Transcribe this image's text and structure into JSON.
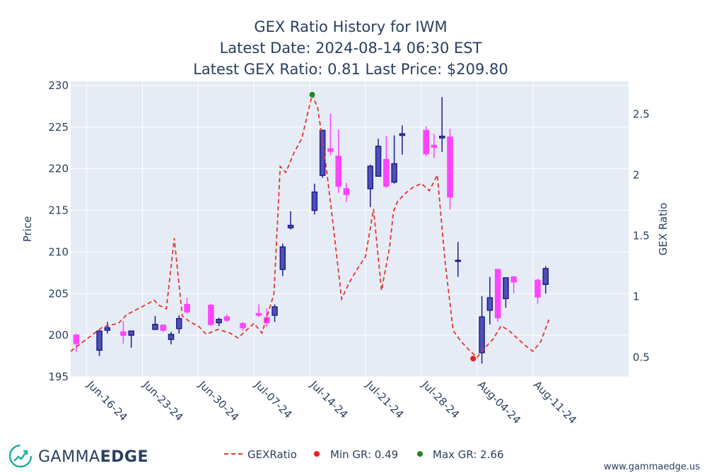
{
  "chart_data": {
    "type": "candlestick+line",
    "title": [
      "GEX Ratio History for IWM",
      "Latest Date: 2024-08-14 06:30 EST",
      "Latest GEX Ratio: 0.81 Last Price: $209.80"
    ],
    "y_left_label": "Price",
    "y_right_label": "GEX Ratio",
    "y_left_range": [
      195,
      230.5
    ],
    "y_right_range": [
      0.34,
      2.77
    ],
    "y_left_ticks": [
      195,
      200,
      205,
      210,
      215,
      220,
      225,
      230
    ],
    "y_right_ticks": [
      0.5,
      1,
      1.5,
      2,
      2.5
    ],
    "x_range_days": [
      0,
      70
    ],
    "x_ticks": [
      {
        "day": 2,
        "label": "Jun-16-24"
      },
      {
        "day": 9,
        "label": "Jun-23-24"
      },
      {
        "day": 16,
        "label": "Jun-30-24"
      },
      {
        "day": 23,
        "label": "Jul-07-24"
      },
      {
        "day": 30,
        "label": "Jul-14-24"
      },
      {
        "day": 37,
        "label": "Jul-21-24"
      },
      {
        "day": 44,
        "label": "Jul-28-24"
      },
      {
        "day": 51,
        "label": "Aug-04-24"
      },
      {
        "day": 58,
        "label": "Aug-11-24"
      }
    ],
    "increasing_color": "#5050b8",
    "decreasing_color": "#ff44ff",
    "candles": [
      {
        "day": 0.7,
        "o": 200.0,
        "h": 200.2,
        "l": 198.0,
        "c": 199.0
      },
      {
        "day": 3.6,
        "o": 198.2,
        "h": 200.6,
        "l": 197.5,
        "c": 200.5
      },
      {
        "day": 4.6,
        "o": 200.6,
        "h": 201.6,
        "l": 200.2,
        "c": 200.9
      },
      {
        "day": 6.6,
        "o": 200.4,
        "h": 201.7,
        "l": 199.0,
        "c": 200.0
      },
      {
        "day": 7.6,
        "o": 200.0,
        "h": 200.5,
        "l": 198.5,
        "c": 200.5
      },
      {
        "day": 10.6,
        "o": 200.7,
        "h": 202.3,
        "l": 200.7,
        "c": 201.3
      },
      {
        "day": 11.6,
        "o": 201.2,
        "h": 201.3,
        "l": 200.4,
        "c": 200.6
      },
      {
        "day": 12.6,
        "o": 199.5,
        "h": 200.4,
        "l": 198.9,
        "c": 200.1
      },
      {
        "day": 13.6,
        "o": 200.8,
        "h": 202.4,
        "l": 200.2,
        "c": 202.0
      },
      {
        "day": 14.6,
        "o": 203.7,
        "h": 204.5,
        "l": 202.6,
        "c": 202.8
      },
      {
        "day": 17.6,
        "o": 203.6,
        "h": 203.8,
        "l": 201.1,
        "c": 201.3
      },
      {
        "day": 18.6,
        "o": 201.5,
        "h": 202.1,
        "l": 201.1,
        "c": 201.9
      },
      {
        "day": 19.6,
        "o": 202.2,
        "h": 202.5,
        "l": 201.6,
        "c": 201.8
      },
      {
        "day": 21.6,
        "o": 201.4,
        "h": 201.6,
        "l": 200.5,
        "c": 200.9
      },
      {
        "day": 23.6,
        "o": 202.6,
        "h": 203.7,
        "l": 202.2,
        "c": 202.4
      },
      {
        "day": 24.6,
        "o": 202.1,
        "h": 203.2,
        "l": 201.0,
        "c": 201.5
      },
      {
        "day": 25.6,
        "o": 202.4,
        "h": 203.7,
        "l": 201.6,
        "c": 203.4
      },
      {
        "day": 26.6,
        "o": 207.9,
        "h": 211.0,
        "l": 207.1,
        "c": 210.6
      },
      {
        "day": 27.6,
        "o": 212.9,
        "h": 214.9,
        "l": 212.7,
        "c": 213.2
      },
      {
        "day": 30.6,
        "o": 215.0,
        "h": 218.2,
        "l": 214.5,
        "c": 217.2
      },
      {
        "day": 31.6,
        "o": 219.2,
        "h": 224.7,
        "l": 218.9,
        "c": 224.6
      },
      {
        "day": 32.6,
        "o": 222.4,
        "h": 226.6,
        "l": 221.6,
        "c": 222.1
      },
      {
        "day": 33.6,
        "o": 221.5,
        "h": 224.7,
        "l": 217.1,
        "c": 217.9
      },
      {
        "day": 34.6,
        "o": 217.6,
        "h": 218.3,
        "l": 216.0,
        "c": 216.9
      },
      {
        "day": 37.6,
        "o": 217.6,
        "h": 220.5,
        "l": 215.4,
        "c": 220.3
      },
      {
        "day": 38.6,
        "o": 219.1,
        "h": 223.6,
        "l": 219.1,
        "c": 222.7
      },
      {
        "day": 39.6,
        "o": 221.1,
        "h": 223.9,
        "l": 217.7,
        "c": 217.9
      },
      {
        "day": 40.6,
        "o": 218.4,
        "h": 224.0,
        "l": 218.2,
        "c": 220.6
      },
      {
        "day": 41.6,
        "o": 224.0,
        "h": 225.2,
        "l": 221.7,
        "c": 224.2
      },
      {
        "day": 44.6,
        "o": 224.6,
        "h": 225.1,
        "l": 221.5,
        "c": 221.8
      },
      {
        "day": 45.6,
        "o": 222.8,
        "h": 224.2,
        "l": 221.3,
        "c": 222.6
      },
      {
        "day": 46.6,
        "o": 223.7,
        "h": 228.6,
        "l": 222.0,
        "c": 223.9
      },
      {
        "day": 47.6,
        "o": 223.8,
        "h": 224.8,
        "l": 215.1,
        "c": 216.6
      },
      {
        "day": 48.6,
        "o": 208.9,
        "h": 211.2,
        "l": 207.0,
        "c": 209.0
      },
      {
        "day": 51.6,
        "o": 197.9,
        "h": 204.7,
        "l": 196.6,
        "c": 202.2
      },
      {
        "day": 52.6,
        "o": 203.0,
        "h": 207.0,
        "l": 201.3,
        "c": 204.5
      },
      {
        "day": 53.6,
        "o": 207.9,
        "h": 207.9,
        "l": 201.6,
        "c": 202.1
      },
      {
        "day": 54.6,
        "o": 204.4,
        "h": 206.9,
        "l": 203.3,
        "c": 206.9
      },
      {
        "day": 55.6,
        "o": 207.0,
        "h": 207.1,
        "l": 205.0,
        "c": 206.4
      },
      {
        "day": 58.6,
        "o": 206.6,
        "h": 206.8,
        "l": 203.8,
        "c": 204.6
      },
      {
        "day": 59.6,
        "o": 206.1,
        "h": 208.3,
        "l": 205.0,
        "c": 208.0
      }
    ],
    "gex_ratio": {
      "name": "GEXRatio",
      "color": "#e8342c",
      "points": [
        [
          0,
          0.55
        ],
        [
          2,
          0.65
        ],
        [
          4,
          0.75
        ],
        [
          6,
          0.78
        ],
        [
          7,
          0.85
        ],
        [
          10.5,
          0.97
        ],
        [
          11,
          0.93
        ],
        [
          12,
          0.9
        ],
        [
          13,
          1.48
        ],
        [
          14,
          0.84
        ],
        [
          15,
          0.79
        ],
        [
          16,
          0.76
        ],
        [
          17,
          0.69
        ],
        [
          18.5,
          0.73
        ],
        [
          20,
          0.7
        ],
        [
          21,
          0.66
        ],
        [
          22,
          0.72
        ],
        [
          23,
          0.78
        ],
        [
          24,
          0.7
        ],
        [
          25.5,
          1.02
        ],
        [
          26.3,
          2.07
        ],
        [
          27,
          2.02
        ],
        [
          28,
          2.18
        ],
        [
          29,
          2.3
        ],
        [
          30.3,
          2.66
        ],
        [
          31,
          2.55
        ],
        [
          32,
          2.1
        ],
        [
          33,
          1.55
        ],
        [
          34,
          0.98
        ],
        [
          35,
          1.12
        ],
        [
          36,
          1.23
        ],
        [
          37,
          1.33
        ],
        [
          38,
          1.72
        ],
        [
          39,
          1.05
        ],
        [
          40,
          1.4
        ],
        [
          40.5,
          1.7
        ],
        [
          41,
          1.78
        ],
        [
          42,
          1.85
        ],
        [
          43,
          1.9
        ],
        [
          44,
          1.93
        ],
        [
          45,
          1.87
        ],
        [
          46,
          2.0
        ],
        [
          47,
          1.27
        ],
        [
          48,
          0.72
        ],
        [
          49,
          0.63
        ],
        [
          50,
          0.56
        ],
        [
          51,
          0.5
        ],
        [
          52,
          0.58
        ],
        [
          53,
          0.65
        ],
        [
          54,
          0.76
        ],
        [
          55,
          0.72
        ],
        [
          56,
          0.66
        ],
        [
          57,
          0.6
        ],
        [
          58,
          0.55
        ],
        [
          59,
          0.63
        ],
        [
          60,
          0.81
        ]
      ]
    },
    "min_marker": {
      "label": "Min GR: 0.49",
      "day": 50.5,
      "value": 0.49,
      "color": "#e8201c"
    },
    "max_marker": {
      "label": "Max GR: 2.66",
      "day": 30.3,
      "value": 2.66,
      "color": "#1e8a1e"
    }
  },
  "branding": {
    "logo_left": "GAMMA",
    "logo_right": "EDGE",
    "website": "www.gammaedge.us"
  },
  "colors": {
    "plot_bg": "#e5ecf6",
    "grid": "#ffffff",
    "text": "#2a3f5f",
    "logo_accent": "#1bb0a0"
  }
}
